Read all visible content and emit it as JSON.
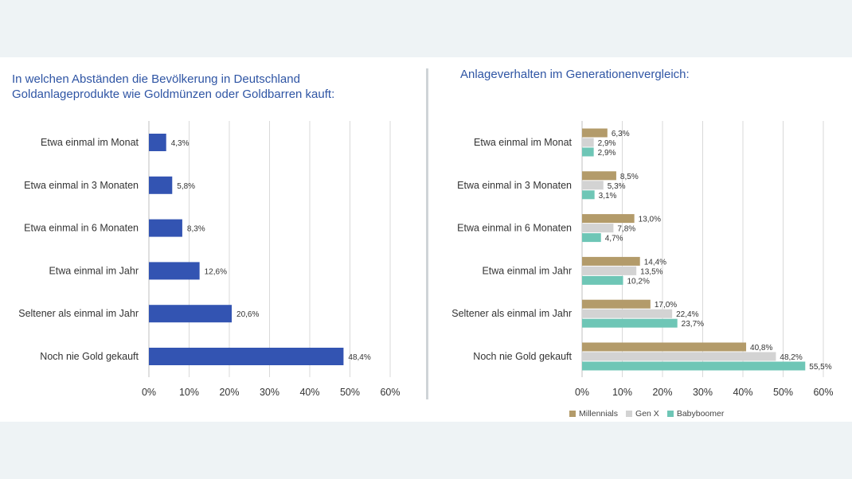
{
  "colors": {
    "left_bar": "#3354b2",
    "millennials": "#b39b6a",
    "gen_x": "#d3d3d3",
    "babyboomer": "#6ec6b6",
    "grid": "#d9d9d9",
    "title": "#2f55a4"
  },
  "chart_data": [
    {
      "type": "bar",
      "orientation": "horizontal",
      "title_lines": [
        "In welchen Abständen die Bevölkerung in Deutschland",
        "Goldanlageprodukte wie Goldmünzen oder Goldbarren kauft:"
      ],
      "categories": [
        "Etwa einmal im Monat",
        "Etwa einmal in 3 Monaten",
        "Etwa einmal in 6 Monaten",
        "Etwa einmal im Jahr",
        "Seltener als einmal im Jahr",
        "Noch nie Gold gekauft"
      ],
      "values": [
        4.3,
        5.8,
        8.3,
        12.6,
        20.6,
        48.4
      ],
      "value_labels": [
        "4,3%",
        "5,8%",
        "8,3%",
        "12,6%",
        "20,6%",
        "48,4%"
      ],
      "xlim": [
        0,
        60
      ],
      "xticks": [
        "0%",
        "10%",
        "20%",
        "30%",
        "40%",
        "50%",
        "60%"
      ],
      "grid": true
    },
    {
      "type": "bar",
      "orientation": "horizontal",
      "title_lines": [
        "Anlageverhalten im Generationenvergleich:"
      ],
      "categories": [
        "Etwa einmal im Monat",
        "Etwa einmal in 3 Monaten",
        "Etwa einmal in 6 Monaten",
        "Etwa einmal im Jahr",
        "Seltener als einmal im Jahr",
        "Noch nie Gold gekauft"
      ],
      "series": [
        {
          "name": "Millennials",
          "values": [
            6.3,
            8.5,
            13.0,
            14.4,
            17.0,
            40.8
          ],
          "value_labels": [
            "6,3%",
            "8,5%",
            "13,0%",
            "14,4%",
            "17,0%",
            "40,8%"
          ]
        },
        {
          "name": "Gen X",
          "values": [
            2.9,
            5.3,
            7.8,
            13.5,
            22.4,
            48.2
          ],
          "value_labels": [
            "2,9%",
            "5,3%",
            "7,8%",
            "13,5%",
            "22,4%",
            "48,2%"
          ]
        },
        {
          "name": "Babyboomer",
          "values": [
            2.9,
            3.1,
            4.7,
            10.2,
            23.7,
            55.5
          ],
          "value_labels": [
            "2,9%",
            "3,1%",
            "4,7%",
            "10,2%",
            "23,7%",
            "55,5%"
          ]
        }
      ],
      "xlim": [
        0,
        60
      ],
      "xticks": [
        "0%",
        "10%",
        "20%",
        "30%",
        "40%",
        "50%",
        "60%"
      ],
      "grid": true,
      "legend_position": "bottom"
    }
  ]
}
